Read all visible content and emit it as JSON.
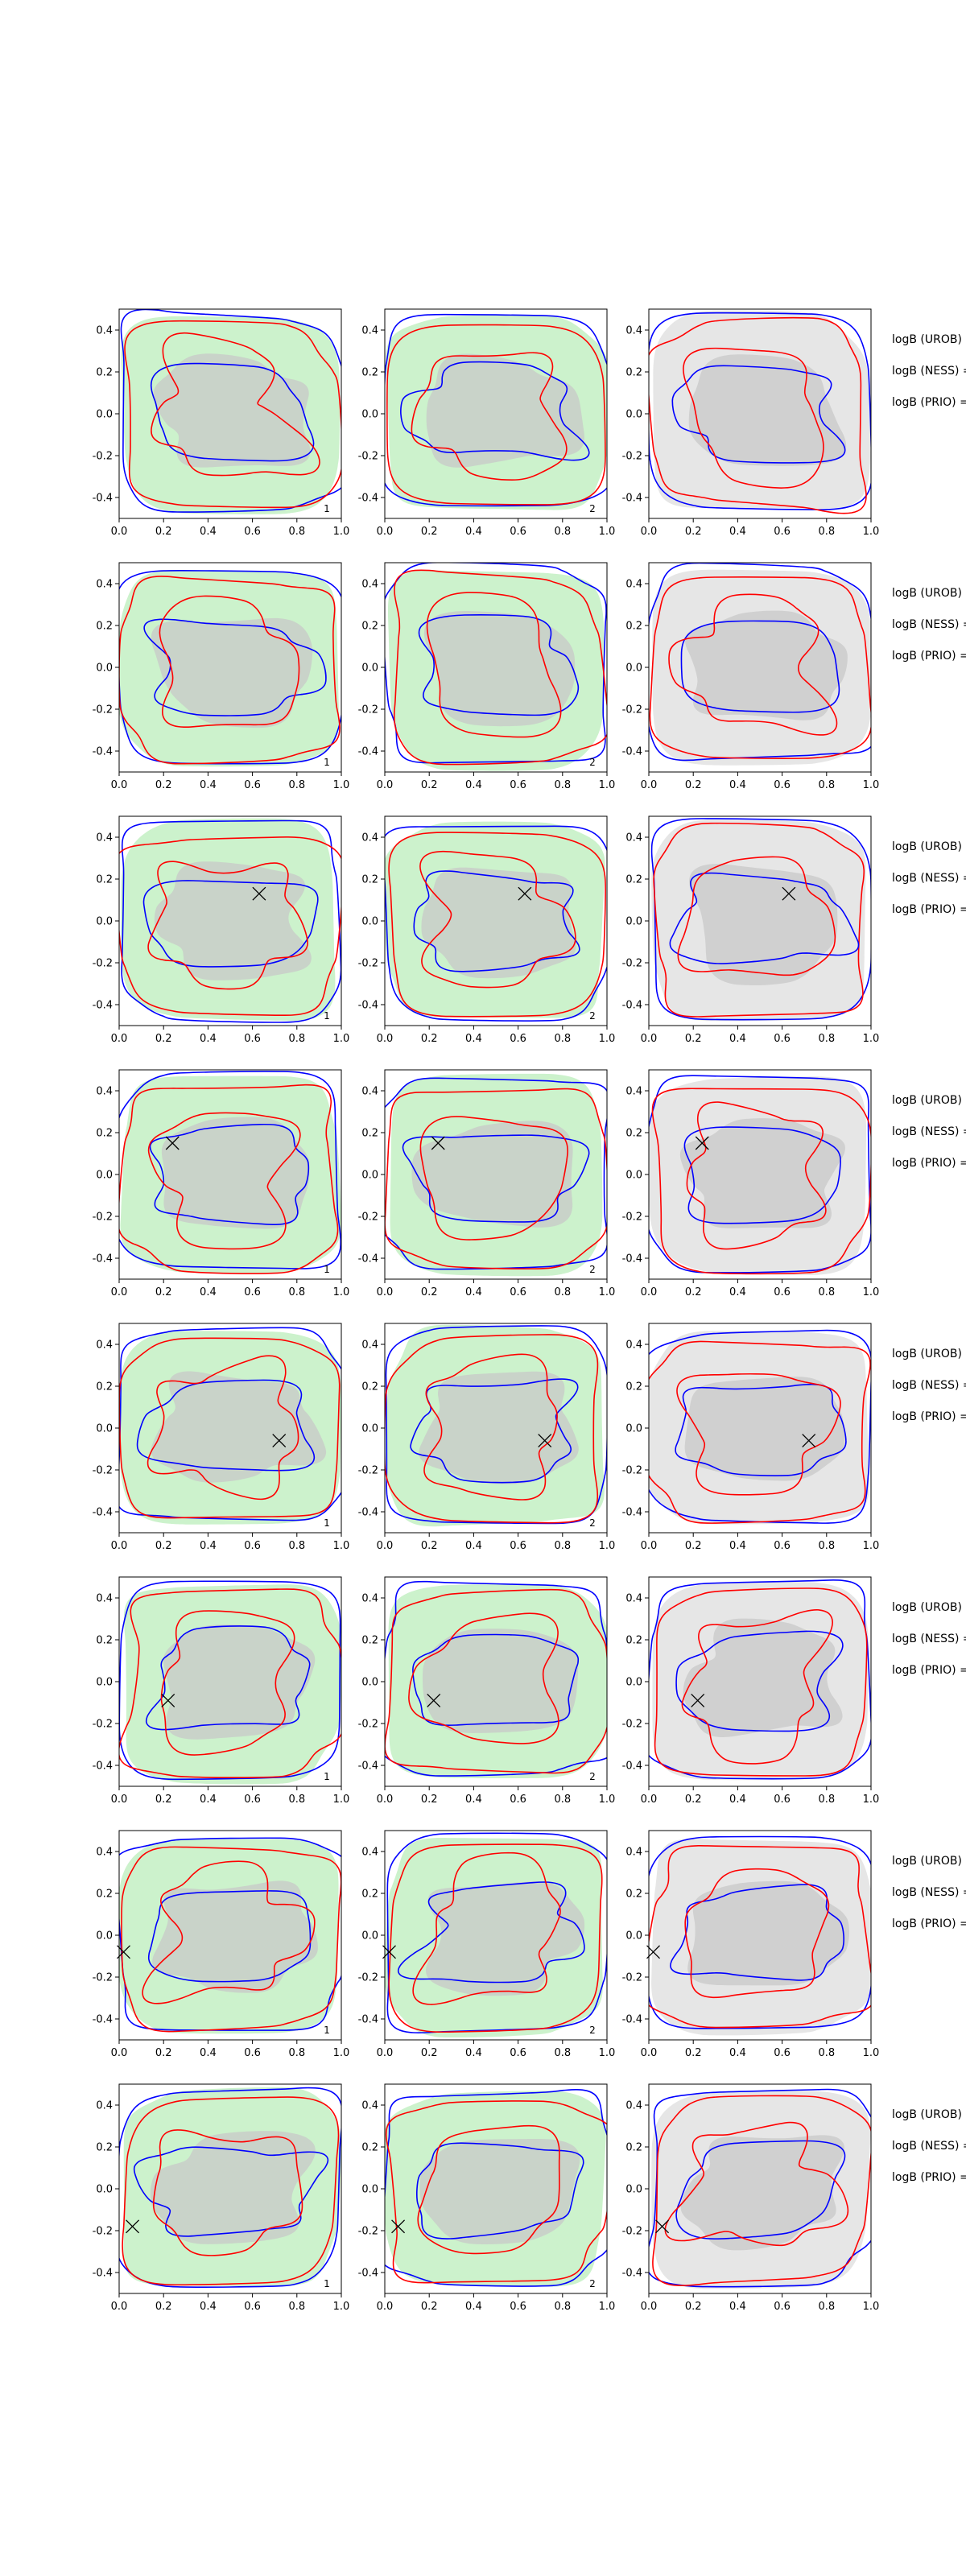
{
  "chart_data": {
    "type": "contour",
    "layout": {
      "rows": 8,
      "cols": 3
    },
    "xlim": [
      0.0,
      1.0
    ],
    "ylim": [
      -0.5,
      0.5
    ],
    "xticks": [
      "0.0",
      "0.2",
      "0.4",
      "0.6",
      "0.8",
      "1.0"
    ],
    "yticks": [
      "-0.4",
      "-0.2",
      "0.0",
      "0.2",
      "0.4"
    ],
    "panel_tags": [
      "1",
      "2",
      ""
    ],
    "grid": false,
    "colors": {
      "blue": "#0000ff",
      "red": "#ff0000",
      "green_fill": "#ccf2cc",
      "gray_fill": "#c8c8c8",
      "light_gray_fill": "#e6e6e6"
    },
    "side_labels": [
      "logB (UROB) =",
      "logB (NESS) =",
      "logB (PRIO) ="
    ],
    "rows": [
      {
        "marker": null
      },
      {
        "marker": null
      },
      {
        "marker": {
          "x": 0.63,
          "y": 0.13
        }
      },
      {
        "marker": {
          "x": 0.24,
          "y": 0.15
        }
      },
      {
        "marker": {
          "x": 0.72,
          "y": -0.06
        }
      },
      {
        "marker": {
          "x": 0.22,
          "y": -0.09
        }
      },
      {
        "marker": {
          "x": 0.02,
          "y": -0.08
        }
      },
      {
        "marker": {
          "x": 0.06,
          "y": -0.18
        }
      }
    ]
  }
}
